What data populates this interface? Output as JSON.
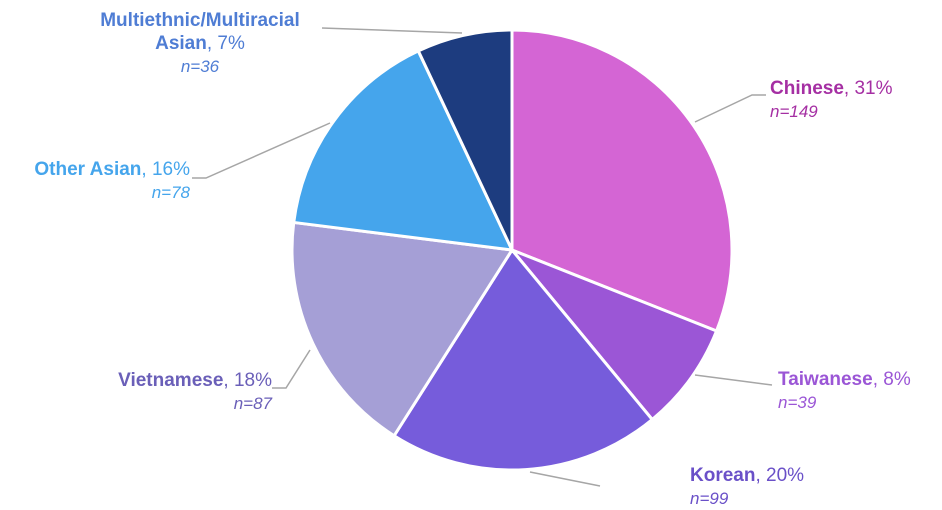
{
  "chart_data": {
    "type": "pie",
    "categories": [
      "Chinese",
      "Taiwanese",
      "Korean",
      "Vietnamese",
      "Other Asian",
      "Multiethnic/Multiracial Asian"
    ],
    "values": [
      31,
      8,
      20,
      18,
      16,
      7
    ],
    "value_labels": [
      "31%",
      "8%",
      "20%",
      "18%",
      "16%",
      "7%"
    ],
    "separator": ", ",
    "n_labels": [
      "n=149",
      "n=39",
      "n=99",
      "n=87",
      "n=78",
      "n=36"
    ],
    "colors": [
      "#d465d4",
      "#9b56d6",
      "#765cdb",
      "#a59fd6",
      "#45a5ec",
      "#1d3c7f"
    ],
    "label_colors": [
      "#a52fa3",
      "#9b56d6",
      "#6a50c8",
      "#6a5fb8",
      "#45a5ec",
      "#4f7dd4"
    ]
  }
}
